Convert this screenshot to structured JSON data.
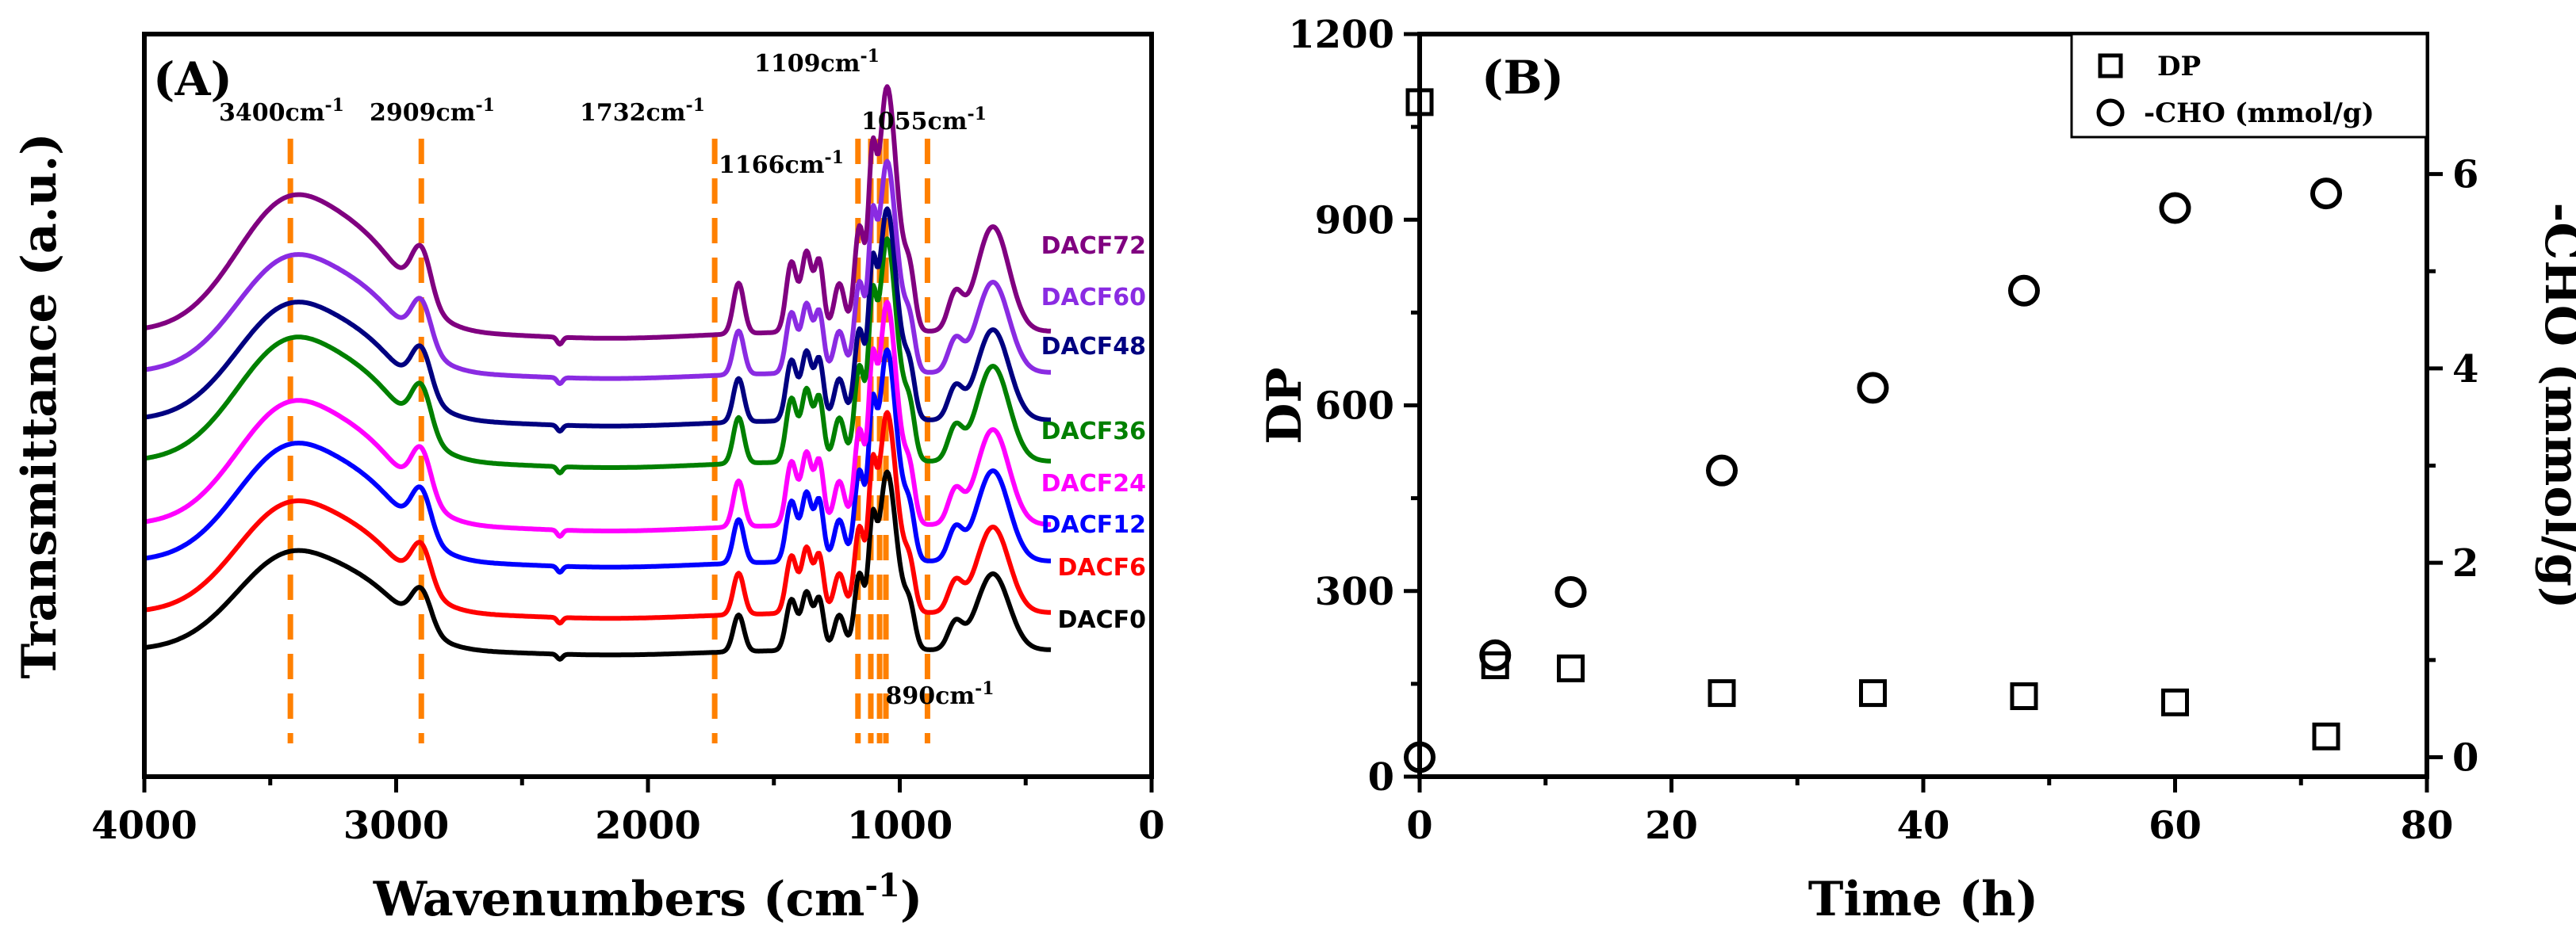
{
  "chart_data": [
    {
      "type": "line",
      "panel": "(A)",
      "title": "",
      "xlabel": "Wavenumbers (cm",
      "xlabel_sup": "-1",
      "xlabel_suffix": ")",
      "ylabel": "Transmittance (a.u.)",
      "xlim": [
        4000,
        0
      ],
      "xticks": [
        "4000",
        "3000",
        "2000",
        "1000",
        "0"
      ],
      "x_reversed": true,
      "y_ticks_shown": false,
      "peak_lines": [
        {
          "wavenumber": 3420,
          "label": "3400cm",
          "sup": "-1"
        },
        {
          "wavenumber": 2900,
          "label": "2909cm",
          "sup": "-1"
        },
        {
          "wavenumber": 1735,
          "label": "1732cm",
          "sup": "-1"
        },
        {
          "wavenumber": 1166,
          "label": "1166cm",
          "sup": "-1"
        },
        {
          "wavenumber": 1115,
          "label": "1109cm",
          "sup": "-1"
        },
        {
          "wavenumber": 1080,
          "label": "",
          "sup": ""
        },
        {
          "wavenumber": 1055,
          "label": "1055cm",
          "sup": "-1"
        },
        {
          "wavenumber": 890,
          "label": "890cm",
          "sup": "-1"
        }
      ],
      "peak_line_color": "#ff8000",
      "series": [
        {
          "name": "DACF0",
          "color": "#000000"
        },
        {
          "name": "DACF6",
          "color": "#ff0000"
        },
        {
          "name": "DACF12",
          "color": "#0000ff"
        },
        {
          "name": "DACF24",
          "color": "#ff00ff"
        },
        {
          "name": "DACF36",
          "color": "#008000"
        },
        {
          "name": "DACF48",
          "color": "#000080"
        },
        {
          "name": "DACF60",
          "color": "#8a2be2"
        },
        {
          "name": "DACF72",
          "color": "#800080"
        }
      ]
    },
    {
      "type": "scatter",
      "panel": "(B)",
      "title": "",
      "xlabel": "Time (h)",
      "ylabel": "DP",
      "ylabel_right": "-CHO (mmol/g)",
      "xlim": [
        0,
        80
      ],
      "ylim": [
        0,
        1200
      ],
      "ylim_right": [
        -0.2,
        7.44
      ],
      "xticks": [
        "0",
        "20",
        "40",
        "60",
        "80"
      ],
      "yticks": [
        "0",
        "300",
        "600",
        "900",
        "1200"
      ],
      "yticks_right": [
        "0",
        "2",
        "4",
        "6"
      ],
      "legend_position": "top-right",
      "series": [
        {
          "name": "DP",
          "marker": "square",
          "axis": "left",
          "x": [
            0,
            6,
            12,
            24,
            36,
            48,
            60,
            72
          ],
          "values": [
            1090,
            180,
            175,
            135,
            135,
            130,
            120,
            65
          ]
        },
        {
          "name": "-CHO (mmol/g)",
          "marker": "circle",
          "axis": "right",
          "x": [
            0,
            6,
            12,
            24,
            36,
            48,
            60,
            72
          ],
          "values": [
            0.0,
            1.05,
            1.7,
            2.95,
            3.8,
            4.8,
            5.65,
            5.8
          ]
        }
      ]
    }
  ]
}
